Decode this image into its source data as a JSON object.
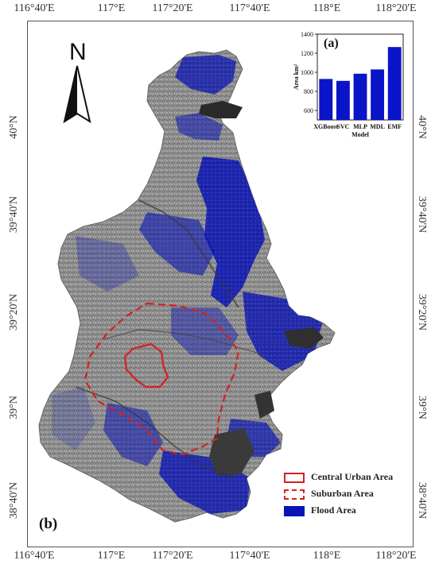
{
  "axes": {
    "lon_labels": [
      "116°40'E",
      "117°E",
      "117°20'E",
      "117°40'E",
      "118°E",
      "118°20'E"
    ],
    "lat_labels": [
      "40°N",
      "39°40'N",
      "39°20'N",
      "39°N",
      "38°40'N"
    ]
  },
  "north_arrow": {
    "label": "N"
  },
  "panels": {
    "map_label": "(b)",
    "inset_label": "(a)"
  },
  "legend": [
    {
      "label": "Central Urban Area",
      "style": "outline",
      "color": "#d62020"
    },
    {
      "label": "Suburban Area",
      "style": "dashed",
      "color": "#d62020"
    },
    {
      "label": "Flood Area",
      "style": "fill",
      "color": "#0a14b4"
    }
  ],
  "colors": {
    "flood": "#0a14b4",
    "boundary": "#d62020",
    "land": "#8c8c8c",
    "water": "#2a2a2a"
  },
  "chart_data": {
    "type": "bar",
    "title": "(a)",
    "categories": [
      "XGBoost",
      "SVC",
      "MLP Model",
      "MDL",
      "EMF"
    ],
    "category_labels": [
      "XGBoost",
      "SVC",
      "MLP",
      "MDL",
      "EMF"
    ],
    "extra_label": "Model",
    "ylabel": "Area km²",
    "ylim": [
      500,
      1400
    ],
    "yticks": [
      "1400",
      "1200",
      "1000",
      "800",
      "600"
    ],
    "values": [
      930,
      910,
      985,
      1030,
      1265
    ],
    "bar_color": "#0a14c8"
  }
}
